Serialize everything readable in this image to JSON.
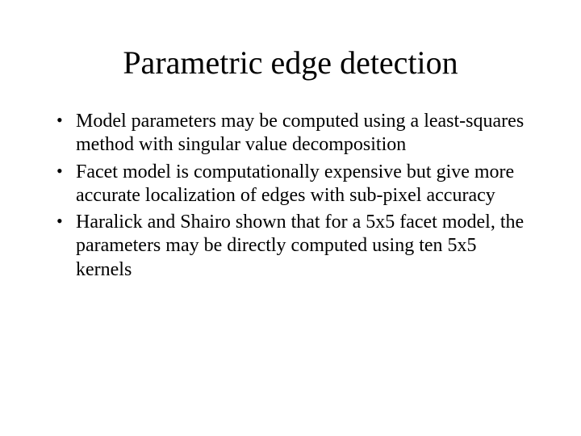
{
  "slide": {
    "title": "Parametric edge detection",
    "bullets": [
      "Model parameters may be computed using a least-squares method with singular value decomposition",
      "Facet model is computationally expensive but give more accurate localization of edges with sub-pixel accuracy",
      "Haralick and Shairo shown that for a 5x5 facet model, the parameters may be directly computed using ten 5x5 kernels"
    ],
    "title_fontsize": 40,
    "body_fontsize": 24,
    "font_family": "Times New Roman",
    "text_color": "#000000",
    "background_color": "#ffffff"
  }
}
